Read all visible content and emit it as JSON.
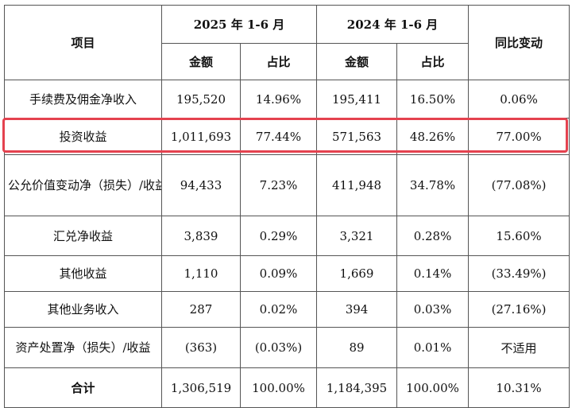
{
  "header": {
    "item_label": "项目",
    "period_2025": "2025 年 1-6 月",
    "period_2024": "2024 年 1-6 月",
    "change_label": "同比变动",
    "amount_label": "金额",
    "ratio_label": "占比"
  },
  "rows": [
    {
      "item": "手续费及佣金净收入",
      "amt2025": "195,520",
      "pct2025": "14.96%",
      "amt2024": "195,411",
      "pct2024": "16.50%",
      "change": "0.06%"
    },
    {
      "item": "投资收益",
      "amt2025": "1,011,693",
      "pct2025": "77.44%",
      "amt2024": "571,563",
      "pct2024": "48.26%",
      "change": "77.00%"
    },
    {
      "item": "公允价值变动净（损失）/收益",
      "amt2025": "94,433",
      "pct2025": "7.23%",
      "amt2024": "411,948",
      "pct2024": "34.78%",
      "change": "(77.08%)"
    },
    {
      "item": "汇兑净收益",
      "amt2025": "3,839",
      "pct2025": "0.29%",
      "amt2024": "3,321",
      "pct2024": "0.28%",
      "change": "15.60%"
    },
    {
      "item": "其他收益",
      "amt2025": "1,110",
      "pct2025": "0.09%",
      "amt2024": "1,669",
      "pct2024": "0.14%",
      "change": "(33.49%)"
    },
    {
      "item": "其他业务收入",
      "amt2025": "287",
      "pct2025": "0.02%",
      "amt2024": "394",
      "pct2024": "0.03%",
      "change": "(27.16%)"
    },
    {
      "item": "资产处置净（损失）/收益",
      "amt2025": "(363)",
      "pct2025": "(0.03%)",
      "amt2024": "89",
      "pct2024": "0.01%",
      "change": "不适用"
    }
  ],
  "total": {
    "item": "合计",
    "amt2025": "1,306,519",
    "pct2025": "100.00%",
    "amt2024": "1,184,395",
    "pct2024": "100.00%",
    "change": "10.31%"
  },
  "highlight_color": "#e4424f"
}
